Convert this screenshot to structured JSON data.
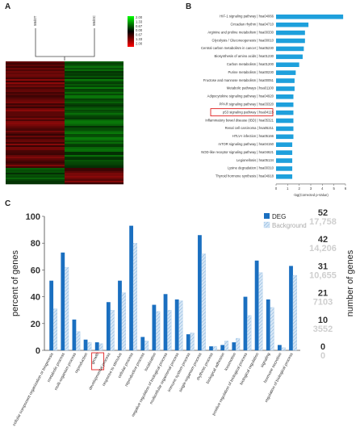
{
  "panels": {
    "a": "A",
    "b": "B",
    "c": "C"
  },
  "heatmap": {
    "samples": [
      "5Bd0T",
      "5Bd0C"
    ],
    "scale_labels": [
      "2.00",
      "1.33",
      "0.67",
      "0.00",
      "0.67",
      "1.33",
      "2.00"
    ],
    "colors": {
      "high": "#00ff00",
      "mid": "#000000",
      "low": "#ff0000"
    }
  },
  "chart_data": [
    {
      "type": "bar",
      "orientation": "horizontal",
      "title": "",
      "xlabel": "-log(Corrected p-Value)",
      "xlim": [
        0,
        6
      ],
      "xticks": [
        "0",
        "1",
        "2",
        "3",
        "4",
        "5",
        "6"
      ],
      "highlighted": "p53 signaling pathway | hsa04115",
      "color": "#1ea0dc",
      "categories": [
        "HIF-1 signaling pathway | hsa04066",
        "Circadian rhythm | hsa04710",
        "Arginine and proline metabolism | hsa00330",
        "Glycolysis / Gluconeogenesis | hsa00010",
        "Central carbon metabolism in cancer | hsa05230",
        "Biosynthesis of amino acids | hsa01230",
        "Carbon metabolism | hsa01200",
        "Purine metabolism | hsa00230",
        "Fructose and mannose metabolism | hsa00051",
        "Metabolic pathways | hsa01100",
        "Adipocytokine signaling pathway | hsa04920",
        "PPAR signaling pathway | hsa03320",
        "p53 signaling pathway | hsa04115",
        "Inflammatory bowel disease (IBD) | hsa05321",
        "Renal cell carcinoma | hsa05211",
        "HTLV-I infection | hsa05166",
        "mTOR signaling pathway | hsa04150",
        "NOD-like receptor signaling pathway | hsa04621",
        "Legionellosis | hsa05134",
        "Lysine degradation | hsa00310",
        "Thyroid hormone synthesis | hsa04918"
      ],
      "values": [
        5.8,
        2.8,
        2.5,
        2.5,
        2.4,
        2.3,
        2.0,
        1.7,
        1.6,
        1.6,
        1.5,
        1.5,
        1.5,
        1.5,
        1.5,
        1.5,
        1.4,
        1.4,
        1.4,
        1.4,
        1.4
      ]
    },
    {
      "type": "bar",
      "title": "",
      "ylabel": "percent of genes",
      "ylabel_right": "number of genes",
      "ylim": [
        0,
        100
      ],
      "yticks": [
        "0",
        "20",
        "40",
        "60",
        "80",
        "100"
      ],
      "right_ticks_deg": [
        "0",
        "10",
        "21",
        "31",
        "42",
        "52"
      ],
      "right_ticks_bg": [
        "0",
        "3552",
        "7103",
        "10,655",
        "14,206",
        "17,758"
      ],
      "legend": {
        "deg": "DEG",
        "bg": "Background",
        "position": "top-right"
      },
      "highlighted": "growth",
      "colors": {
        "deg": "#1a6fc0",
        "bg": "#b8d4ee"
      },
      "categories": [
        "cellular component organization or biogenesis",
        "metabolic process",
        "multi-organism process",
        "reproduction",
        "growth",
        "developmental process",
        "response to stimulus",
        "cellular process",
        "reproductive process",
        "localization",
        "negative regulation of biological process",
        "multicellular organismal process",
        "immune system process",
        "single-organism process",
        "rhythmic process",
        "biological adhesion",
        "locomotion",
        "positive regulation of biological process",
        "biological regulation",
        "signaling",
        "hormone secretion",
        "regulation of biological process"
      ],
      "series": [
        {
          "name": "DEG",
          "values": [
            52,
            73,
            23,
            8,
            6,
            36,
            52,
            93,
            10,
            34,
            42,
            38,
            12,
            86,
            3,
            4,
            6,
            40,
            67,
            38,
            4,
            63
          ]
        },
        {
          "name": "Background",
          "values": [
            31,
            62,
            14,
            6,
            5,
            30,
            43,
            80,
            7,
            29,
            30,
            37,
            13,
            72,
            3,
            7,
            9,
            26,
            58,
            32,
            2,
            56
          ]
        }
      ]
    }
  ]
}
